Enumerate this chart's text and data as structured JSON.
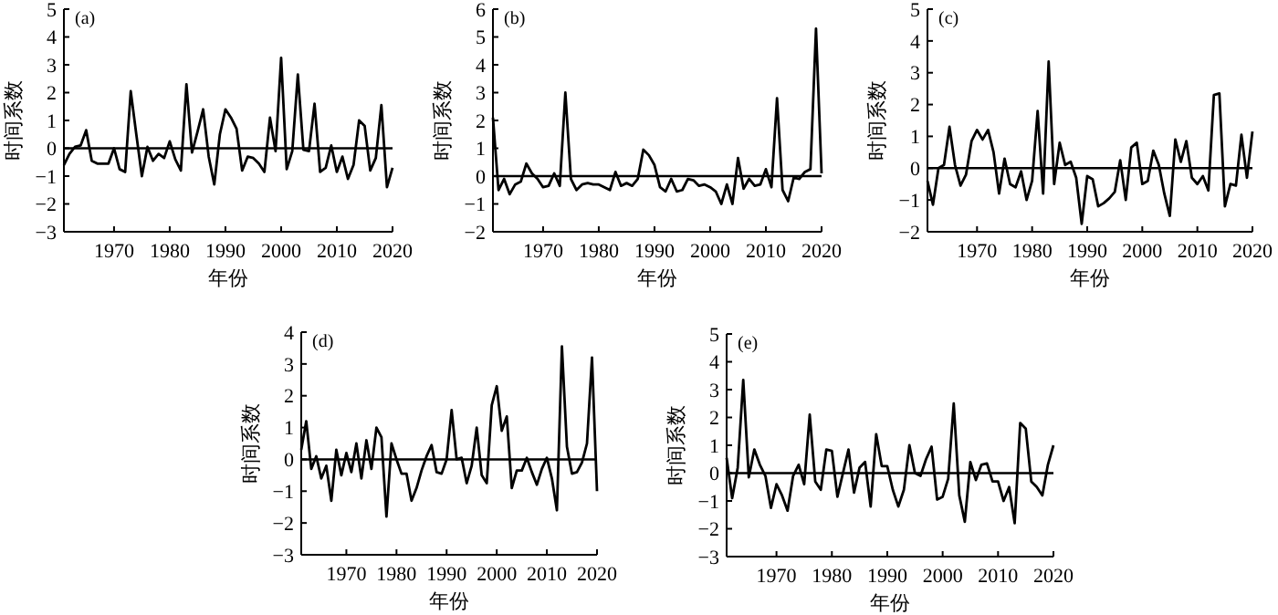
{
  "chart_data": [
    {
      "type": "line",
      "title": "(a)",
      "xlabel": "年份",
      "ylabel": "时间系数",
      "xlim": [
        1961,
        2020
      ],
      "xticks": [
        1970,
        1980,
        1990,
        2000,
        2010,
        2020
      ],
      "ylim": [
        -3,
        5
      ],
      "yticks": [
        -3,
        -2,
        -1,
        0,
        1,
        2,
        3,
        4,
        5
      ],
      "x": [
        1961,
        1962,
        1963,
        1964,
        1965,
        1966,
        1967,
        1968,
        1969,
        1970,
        1971,
        1972,
        1973,
        1974,
        1975,
        1976,
        1977,
        1978,
        1979,
        1980,
        1981,
        1982,
        1983,
        1984,
        1985,
        1986,
        1987,
        1988,
        1989,
        1990,
        1991,
        1992,
        1993,
        1994,
        1995,
        1996,
        1997,
        1998,
        1999,
        2000,
        2001,
        2002,
        2003,
        2004,
        2005,
        2006,
        2007,
        2008,
        2009,
        2010,
        2011,
        2012,
        2013,
        2014,
        2015,
        2016,
        2017,
        2018,
        2019,
        2020
      ],
      "ref_lines": [
        {
          "axis": "y",
          "value": 0
        }
      ],
      "series": [
        {
          "color": "#000000",
          "values": [
            -0.6,
            -0.2,
            0.05,
            0.1,
            0.65,
            -0.45,
            -0.55,
            -0.55,
            -0.55,
            0.0,
            -0.75,
            -0.85,
            2.05,
            0.5,
            -1.0,
            0.05,
            -0.45,
            -0.2,
            -0.35,
            0.25,
            -0.4,
            -0.8,
            2.3,
            -0.15,
            0.6,
            1.4,
            -0.3,
            -1.3,
            0.5,
            1.4,
            1.1,
            0.7,
            -0.8,
            -0.3,
            -0.35,
            -0.55,
            -0.85,
            1.1,
            -0.1,
            3.25,
            -0.75,
            -0.1,
            2.65,
            -0.05,
            -0.1,
            1.6,
            -0.85,
            -0.7,
            0.1,
            -0.85,
            -0.3,
            -1.1,
            -0.6,
            1.0,
            0.8,
            -0.8,
            -0.35,
            1.55,
            -1.4,
            -0.7
          ]
        }
      ]
    },
    {
      "type": "line",
      "title": "(b)",
      "xlabel": "年份",
      "ylabel": "时间系数",
      "xlim": [
        1961,
        2020
      ],
      "xticks": [
        1970,
        1980,
        1990,
        2000,
        2010,
        2020
      ],
      "ylim": [
        -2,
        6
      ],
      "yticks": [
        -2,
        -1,
        0,
        1,
        2,
        3,
        4,
        5,
        6
      ],
      "x": [
        1961,
        1962,
        1963,
        1964,
        1965,
        1966,
        1967,
        1968,
        1969,
        1970,
        1971,
        1972,
        1973,
        1974,
        1975,
        1976,
        1977,
        1978,
        1979,
        1980,
        1981,
        1982,
        1983,
        1984,
        1985,
        1986,
        1987,
        1988,
        1989,
        1990,
        1991,
        1992,
        1993,
        1994,
        1995,
        1996,
        1997,
        1998,
        1999,
        2000,
        2001,
        2002,
        2003,
        2004,
        2005,
        2006,
        2007,
        2008,
        2009,
        2010,
        2011,
        2012,
        2013,
        2014,
        2015,
        2016,
        2017,
        2018,
        2019,
        2020
      ],
      "ref_lines": [
        {
          "axis": "y",
          "value": 0
        }
      ],
      "series": [
        {
          "color": "#000000",
          "values": [
            2.1,
            -0.5,
            -0.1,
            -0.65,
            -0.3,
            -0.2,
            0.45,
            0.1,
            -0.1,
            -0.4,
            -0.35,
            0.1,
            -0.35,
            3.0,
            -0.1,
            -0.5,
            -0.3,
            -0.25,
            -0.3,
            -0.3,
            -0.4,
            -0.5,
            0.15,
            -0.35,
            -0.25,
            -0.35,
            -0.1,
            0.95,
            0.75,
            0.4,
            -0.4,
            -0.55,
            -0.1,
            -0.55,
            -0.5,
            -0.1,
            -0.15,
            -0.35,
            -0.3,
            -0.4,
            -0.55,
            -1.0,
            -0.3,
            -1.0,
            0.65,
            -0.45,
            -0.1,
            -0.35,
            -0.3,
            0.25,
            -0.4,
            2.8,
            -0.5,
            -0.9,
            -0.05,
            -0.1,
            0.15,
            0.25,
            5.3,
            0.1
          ]
        }
      ]
    },
    {
      "type": "line",
      "title": "(c)",
      "xlabel": "年份",
      "ylabel": "时间系数",
      "xlim": [
        1961,
        2020
      ],
      "xticks": [
        1970,
        1980,
        1990,
        2000,
        2010,
        2020
      ],
      "ylim": [
        -2,
        5
      ],
      "yticks": [
        -2,
        -1,
        0,
        1,
        2,
        3,
        4,
        5
      ],
      "x": [
        1961,
        1962,
        1963,
        1964,
        1965,
        1966,
        1967,
        1968,
        1969,
        1970,
        1971,
        1972,
        1973,
        1974,
        1975,
        1976,
        1977,
        1978,
        1979,
        1980,
        1981,
        1982,
        1983,
        1984,
        1985,
        1986,
        1987,
        1988,
        1989,
        1990,
        1991,
        1992,
        1993,
        1994,
        1995,
        1996,
        1997,
        1998,
        1999,
        2000,
        2001,
        2002,
        2003,
        2004,
        2005,
        2006,
        2007,
        2008,
        2009,
        2010,
        2011,
        2012,
        2013,
        2014,
        2015,
        2016,
        2017,
        2018,
        2019,
        2020
      ],
      "ref_lines": [
        {
          "axis": "y",
          "value": 0
        }
      ],
      "series": [
        {
          "color": "#000000",
          "values": [
            -0.4,
            -1.15,
            0.0,
            0.1,
            1.3,
            0.1,
            -0.55,
            -0.2,
            0.85,
            1.2,
            0.9,
            1.2,
            0.5,
            -0.8,
            0.3,
            -0.5,
            -0.6,
            -0.1,
            -1.0,
            -0.4,
            1.8,
            -0.8,
            3.35,
            -0.5,
            0.8,
            0.1,
            0.2,
            -0.3,
            -1.75,
            -0.25,
            -0.35,
            -1.2,
            -1.1,
            -0.95,
            -0.75,
            0.25,
            -1.0,
            0.65,
            0.8,
            -0.5,
            -0.4,
            0.55,
            0.1,
            -0.8,
            -1.5,
            0.9,
            0.2,
            0.85,
            -0.3,
            -0.5,
            -0.25,
            -0.7,
            2.3,
            2.35,
            -1.2,
            -0.5,
            -0.55,
            1.05,
            -0.3,
            1.15
          ]
        }
      ]
    },
    {
      "type": "line",
      "title": "(d)",
      "xlabel": "年份",
      "ylabel": "时间系数",
      "xlim": [
        1961,
        2020
      ],
      "xticks": [
        1970,
        1980,
        1990,
        2000,
        2010,
        2020
      ],
      "ylim": [
        -3,
        4
      ],
      "yticks": [
        -3,
        -2,
        -1,
        0,
        1,
        2,
        3,
        4
      ],
      "x": [
        1961,
        1962,
        1963,
        1964,
        1965,
        1966,
        1967,
        1968,
        1969,
        1970,
        1971,
        1972,
        1973,
        1974,
        1975,
        1976,
        1977,
        1978,
        1979,
        1980,
        1981,
        1982,
        1983,
        1984,
        1985,
        1986,
        1987,
        1988,
        1989,
        1990,
        1991,
        1992,
        1993,
        1994,
        1995,
        1996,
        1997,
        1998,
        1999,
        2000,
        2001,
        2002,
        2003,
        2004,
        2005,
        2006,
        2007,
        2008,
        2009,
        2010,
        2011,
        2012,
        2013,
        2014,
        2015,
        2016,
        2017,
        2018,
        2019,
        2020
      ],
      "ref_lines": [
        {
          "axis": "y",
          "value": 0
        }
      ],
      "series": [
        {
          "color": "#000000",
          "values": [
            0.3,
            1.2,
            -0.3,
            0.1,
            -0.6,
            -0.2,
            -1.3,
            0.3,
            -0.5,
            0.2,
            -0.4,
            0.5,
            -0.6,
            0.6,
            -0.3,
            1.0,
            0.7,
            -1.8,
            0.5,
            0.0,
            -0.45,
            -0.45,
            -1.3,
            -0.9,
            -0.35,
            0.1,
            0.45,
            -0.4,
            -0.45,
            0.0,
            1.55,
            0.0,
            0.05,
            -0.75,
            -0.2,
            1.0,
            -0.5,
            -0.75,
            1.7,
            2.3,
            0.9,
            1.35,
            -0.9,
            -0.35,
            -0.35,
            0.05,
            -0.4,
            -0.8,
            -0.3,
            0.05,
            -0.6,
            -1.6,
            3.55,
            0.4,
            -0.45,
            -0.4,
            -0.1,
            0.5,
            3.2,
            -1.0
          ]
        }
      ]
    },
    {
      "type": "line",
      "title": "(e)",
      "xlabel": "年份",
      "ylabel": "时间系数",
      "xlim": [
        1961,
        2020
      ],
      "xticks": [
        1970,
        1980,
        1990,
        2000,
        2010,
        2020
      ],
      "ylim": [
        -3,
        5
      ],
      "yticks": [
        -3,
        -2,
        -1,
        0,
        1,
        2,
        3,
        4,
        5
      ],
      "x": [
        1961,
        1962,
        1963,
        1964,
        1965,
        1966,
        1967,
        1968,
        1969,
        1970,
        1971,
        1972,
        1973,
        1974,
        1975,
        1976,
        1977,
        1978,
        1979,
        1980,
        1981,
        1982,
        1983,
        1984,
        1985,
        1986,
        1987,
        1988,
        1989,
        1990,
        1991,
        1992,
        1993,
        1994,
        1995,
        1996,
        1997,
        1998,
        1999,
        2000,
        2001,
        2002,
        2003,
        2004,
        2005,
        2006,
        2007,
        2008,
        2009,
        2010,
        2011,
        2012,
        2013,
        2014,
        2015,
        2016,
        2017,
        2018,
        2019,
        2020
      ],
      "ref_lines": [
        {
          "axis": "y",
          "value": 0
        }
      ],
      "series": [
        {
          "color": "#000000",
          "values": [
            0.55,
            -0.9,
            0.2,
            3.35,
            -0.15,
            0.85,
            0.3,
            -0.1,
            -1.25,
            -0.4,
            -0.8,
            -1.35,
            -0.1,
            0.3,
            -0.4,
            2.1,
            -0.3,
            -0.6,
            0.85,
            0.8,
            -0.85,
            0.0,
            0.85,
            -0.7,
            0.2,
            0.4,
            -1.2,
            1.4,
            0.25,
            0.25,
            -0.6,
            -1.2,
            -0.6,
            1.0,
            0.0,
            -0.1,
            0.5,
            0.95,
            -0.95,
            -0.85,
            -0.2,
            2.5,
            -0.8,
            -1.75,
            0.4,
            -0.25,
            0.3,
            0.35,
            -0.3,
            -0.3,
            -1.0,
            -0.5,
            -1.8,
            1.8,
            1.6,
            -0.3,
            -0.5,
            -0.8,
            0.3,
            1.0
          ]
        }
      ]
    }
  ]
}
